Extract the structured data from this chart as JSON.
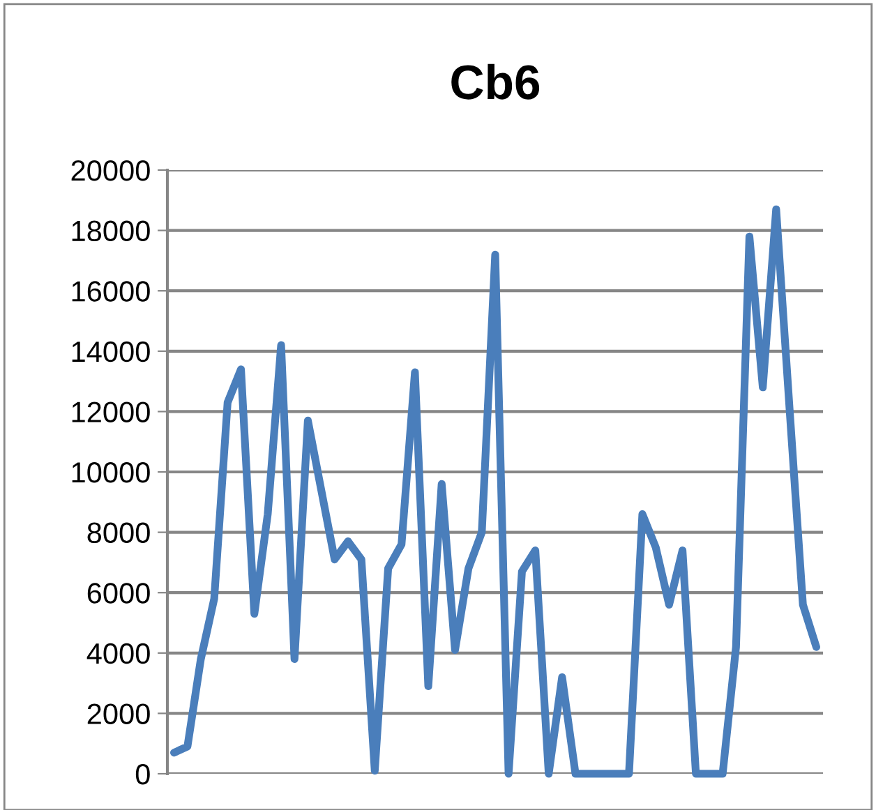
{
  "chart_data": {
    "type": "line",
    "title": "Cb6",
    "categories": [
      null,
      null,
      null,
      null,
      null,
      null,
      null,
      null,
      null,
      null,
      null,
      null,
      null,
      null,
      null,
      null,
      null,
      null,
      null,
      null,
      null,
      null,
      null,
      null,
      null,
      null,
      null,
      null,
      null,
      null,
      null,
      null,
      null,
      null,
      null,
      null,
      null,
      null,
      null,
      null,
      null,
      null,
      null,
      null,
      null,
      null,
      null,
      null,
      null
    ],
    "series": [
      {
        "color": "#4a7ebb",
        "values": [
          700,
          900,
          3800,
          5800,
          12300,
          13400,
          5300,
          8600,
          14200,
          3800,
          11700,
          9400,
          7100,
          7700,
          7100,
          100,
          6800,
          7600,
          13300,
          2900,
          9600,
          4100,
          6800,
          8000,
          17200,
          0,
          6700,
          7400,
          0,
          3200,
          0,
          0,
          0,
          0,
          0,
          8600,
          7500,
          5600,
          7400,
          0,
          0,
          0,
          4200,
          17800,
          12800,
          18700,
          12100,
          5600,
          4200
        ]
      }
    ],
    "ylim": [
      0,
      20000
    ],
    "yticks": [
      0,
      2000,
      4000,
      6000,
      8000,
      10000,
      12000,
      14000,
      16000,
      18000,
      20000
    ],
    "grid": "y",
    "marker": "none",
    "line_style": "solid",
    "tick_labels": "y"
  }
}
